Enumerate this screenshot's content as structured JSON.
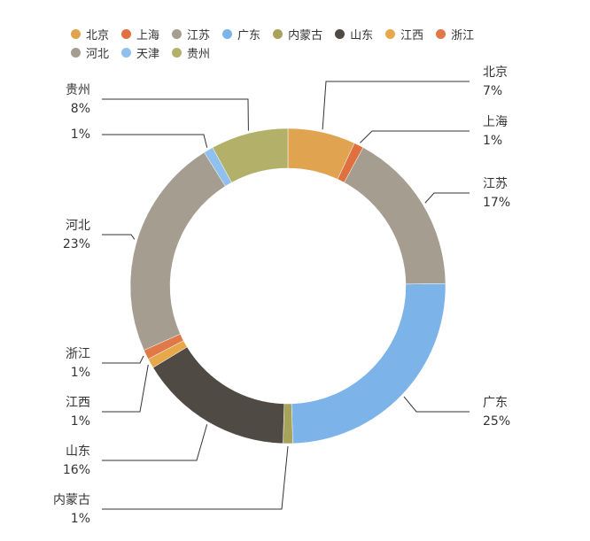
{
  "chart_data": {
    "type": "donut",
    "categories": [
      "北京",
      "上海",
      "江苏",
      "广东",
      "内蒙古",
      "山东",
      "江西",
      "浙江",
      "河北",
      "天津",
      "贵州"
    ],
    "values": [
      7,
      1,
      17,
      25,
      1,
      16,
      1,
      1,
      23,
      1,
      8
    ],
    "value_labels": [
      "7%",
      "1%",
      "17%",
      "25%",
      "1%",
      "16%",
      "1%",
      "1%",
      "23%",
      "1%",
      "8%"
    ],
    "colors": [
      "#e0a450",
      "#e07040",
      "#a59d90",
      "#7cb3e8",
      "#a8a35a",
      "#4f4a44",
      "#e6a84a",
      "#e07848",
      "#a59d90",
      "#8fc0ee",
      "#b3b06a"
    ]
  }
}
